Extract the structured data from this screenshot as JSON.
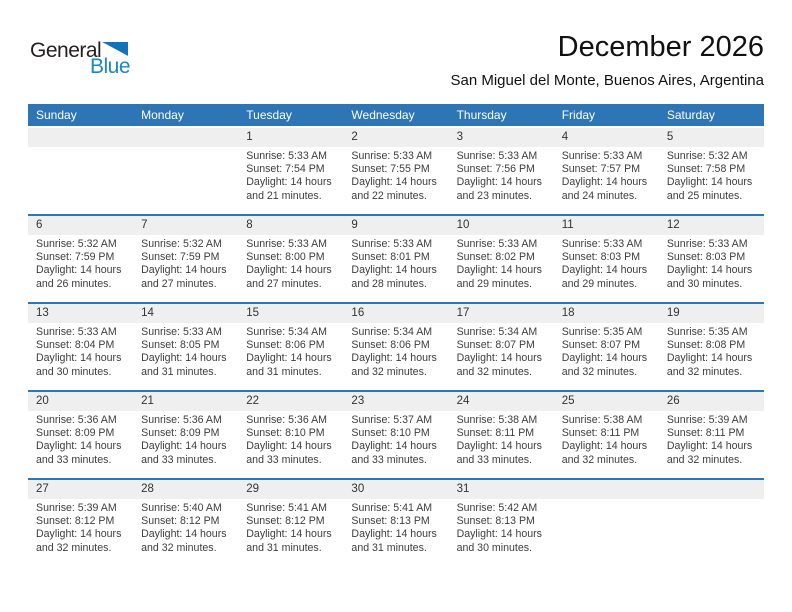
{
  "logo": {
    "part1": "General",
    "part2": "Blue",
    "triangle_color": "#1173b8",
    "blue_color": "#1b87c9"
  },
  "header": {
    "title": "December 2026",
    "subtitle": "San Miguel del Monte, Buenos Aires, Argentina"
  },
  "colors": {
    "header_bar_blue": "#2e75b5",
    "week_divider_blue": "#2e75b5",
    "day_number_band_gray": "#efefef",
    "body_text": "#3d3d3d"
  },
  "day_headers": [
    "Sunday",
    "Monday",
    "Tuesday",
    "Wednesday",
    "Thursday",
    "Friday",
    "Saturday"
  ],
  "weeks": [
    {
      "cells": [
        null,
        null,
        {
          "day": "1",
          "sunrise": "Sunrise: 5:33 AM",
          "sunset": "Sunset: 7:54 PM",
          "daylight": "Daylight: 14 hours and 21 minutes."
        },
        {
          "day": "2",
          "sunrise": "Sunrise: 5:33 AM",
          "sunset": "Sunset: 7:55 PM",
          "daylight": "Daylight: 14 hours and 22 minutes."
        },
        {
          "day": "3",
          "sunrise": "Sunrise: 5:33 AM",
          "sunset": "Sunset: 7:56 PM",
          "daylight": "Daylight: 14 hours and 23 minutes."
        },
        {
          "day": "4",
          "sunrise": "Sunrise: 5:33 AM",
          "sunset": "Sunset: 7:57 PM",
          "daylight": "Daylight: 14 hours and 24 minutes."
        },
        {
          "day": "5",
          "sunrise": "Sunrise: 5:32 AM",
          "sunset": "Sunset: 7:58 PM",
          "daylight": "Daylight: 14 hours and 25 minutes."
        }
      ]
    },
    {
      "cells": [
        {
          "day": "6",
          "sunrise": "Sunrise: 5:32 AM",
          "sunset": "Sunset: 7:59 PM",
          "daylight": "Daylight: 14 hours and 26 minutes."
        },
        {
          "day": "7",
          "sunrise": "Sunrise: 5:32 AM",
          "sunset": "Sunset: 7:59 PM",
          "daylight": "Daylight: 14 hours and 27 minutes."
        },
        {
          "day": "8",
          "sunrise": "Sunrise: 5:33 AM",
          "sunset": "Sunset: 8:00 PM",
          "daylight": "Daylight: 14 hours and 27 minutes."
        },
        {
          "day": "9",
          "sunrise": "Sunrise: 5:33 AM",
          "sunset": "Sunset: 8:01 PM",
          "daylight": "Daylight: 14 hours and 28 minutes."
        },
        {
          "day": "10",
          "sunrise": "Sunrise: 5:33 AM",
          "sunset": "Sunset: 8:02 PM",
          "daylight": "Daylight: 14 hours and 29 minutes."
        },
        {
          "day": "11",
          "sunrise": "Sunrise: 5:33 AM",
          "sunset": "Sunset: 8:03 PM",
          "daylight": "Daylight: 14 hours and 29 minutes."
        },
        {
          "day": "12",
          "sunrise": "Sunrise: 5:33 AM",
          "sunset": "Sunset: 8:03 PM",
          "daylight": "Daylight: 14 hours and 30 minutes."
        }
      ]
    },
    {
      "cells": [
        {
          "day": "13",
          "sunrise": "Sunrise: 5:33 AM",
          "sunset": "Sunset: 8:04 PM",
          "daylight": "Daylight: 14 hours and 30 minutes."
        },
        {
          "day": "14",
          "sunrise": "Sunrise: 5:33 AM",
          "sunset": "Sunset: 8:05 PM",
          "daylight": "Daylight: 14 hours and 31 minutes."
        },
        {
          "day": "15",
          "sunrise": "Sunrise: 5:34 AM",
          "sunset": "Sunset: 8:06 PM",
          "daylight": "Daylight: 14 hours and 31 minutes."
        },
        {
          "day": "16",
          "sunrise": "Sunrise: 5:34 AM",
          "sunset": "Sunset: 8:06 PM",
          "daylight": "Daylight: 14 hours and 32 minutes."
        },
        {
          "day": "17",
          "sunrise": "Sunrise: 5:34 AM",
          "sunset": "Sunset: 8:07 PM",
          "daylight": "Daylight: 14 hours and 32 minutes."
        },
        {
          "day": "18",
          "sunrise": "Sunrise: 5:35 AM",
          "sunset": "Sunset: 8:07 PM",
          "daylight": "Daylight: 14 hours and 32 minutes."
        },
        {
          "day": "19",
          "sunrise": "Sunrise: 5:35 AM",
          "sunset": "Sunset: 8:08 PM",
          "daylight": "Daylight: 14 hours and 32 minutes."
        }
      ]
    },
    {
      "cells": [
        {
          "day": "20",
          "sunrise": "Sunrise: 5:36 AM",
          "sunset": "Sunset: 8:09 PM",
          "daylight": "Daylight: 14 hours and 33 minutes."
        },
        {
          "day": "21",
          "sunrise": "Sunrise: 5:36 AM",
          "sunset": "Sunset: 8:09 PM",
          "daylight": "Daylight: 14 hours and 33 minutes."
        },
        {
          "day": "22",
          "sunrise": "Sunrise: 5:36 AM",
          "sunset": "Sunset: 8:10 PM",
          "daylight": "Daylight: 14 hours and 33 minutes."
        },
        {
          "day": "23",
          "sunrise": "Sunrise: 5:37 AM",
          "sunset": "Sunset: 8:10 PM",
          "daylight": "Daylight: 14 hours and 33 minutes."
        },
        {
          "day": "24",
          "sunrise": "Sunrise: 5:38 AM",
          "sunset": "Sunset: 8:11 PM",
          "daylight": "Daylight: 14 hours and 33 minutes."
        },
        {
          "day": "25",
          "sunrise": "Sunrise: 5:38 AM",
          "sunset": "Sunset: 8:11 PM",
          "daylight": "Daylight: 14 hours and 32 minutes."
        },
        {
          "day": "26",
          "sunrise": "Sunrise: 5:39 AM",
          "sunset": "Sunset: 8:11 PM",
          "daylight": "Daylight: 14 hours and 32 minutes."
        }
      ]
    },
    {
      "cells": [
        {
          "day": "27",
          "sunrise": "Sunrise: 5:39 AM",
          "sunset": "Sunset: 8:12 PM",
          "daylight": "Daylight: 14 hours and 32 minutes."
        },
        {
          "day": "28",
          "sunrise": "Sunrise: 5:40 AM",
          "sunset": "Sunset: 8:12 PM",
          "daylight": "Daylight: 14 hours and 32 minutes."
        },
        {
          "day": "29",
          "sunrise": "Sunrise: 5:41 AM",
          "sunset": "Sunset: 8:12 PM",
          "daylight": "Daylight: 14 hours and 31 minutes."
        },
        {
          "day": "30",
          "sunrise": "Sunrise: 5:41 AM",
          "sunset": "Sunset: 8:13 PM",
          "daylight": "Daylight: 14 hours and 31 minutes."
        },
        {
          "day": "31",
          "sunrise": "Sunrise: 5:42 AM",
          "sunset": "Sunset: 8:13 PM",
          "daylight": "Daylight: 14 hours and 30 minutes."
        },
        null,
        null
      ]
    }
  ]
}
